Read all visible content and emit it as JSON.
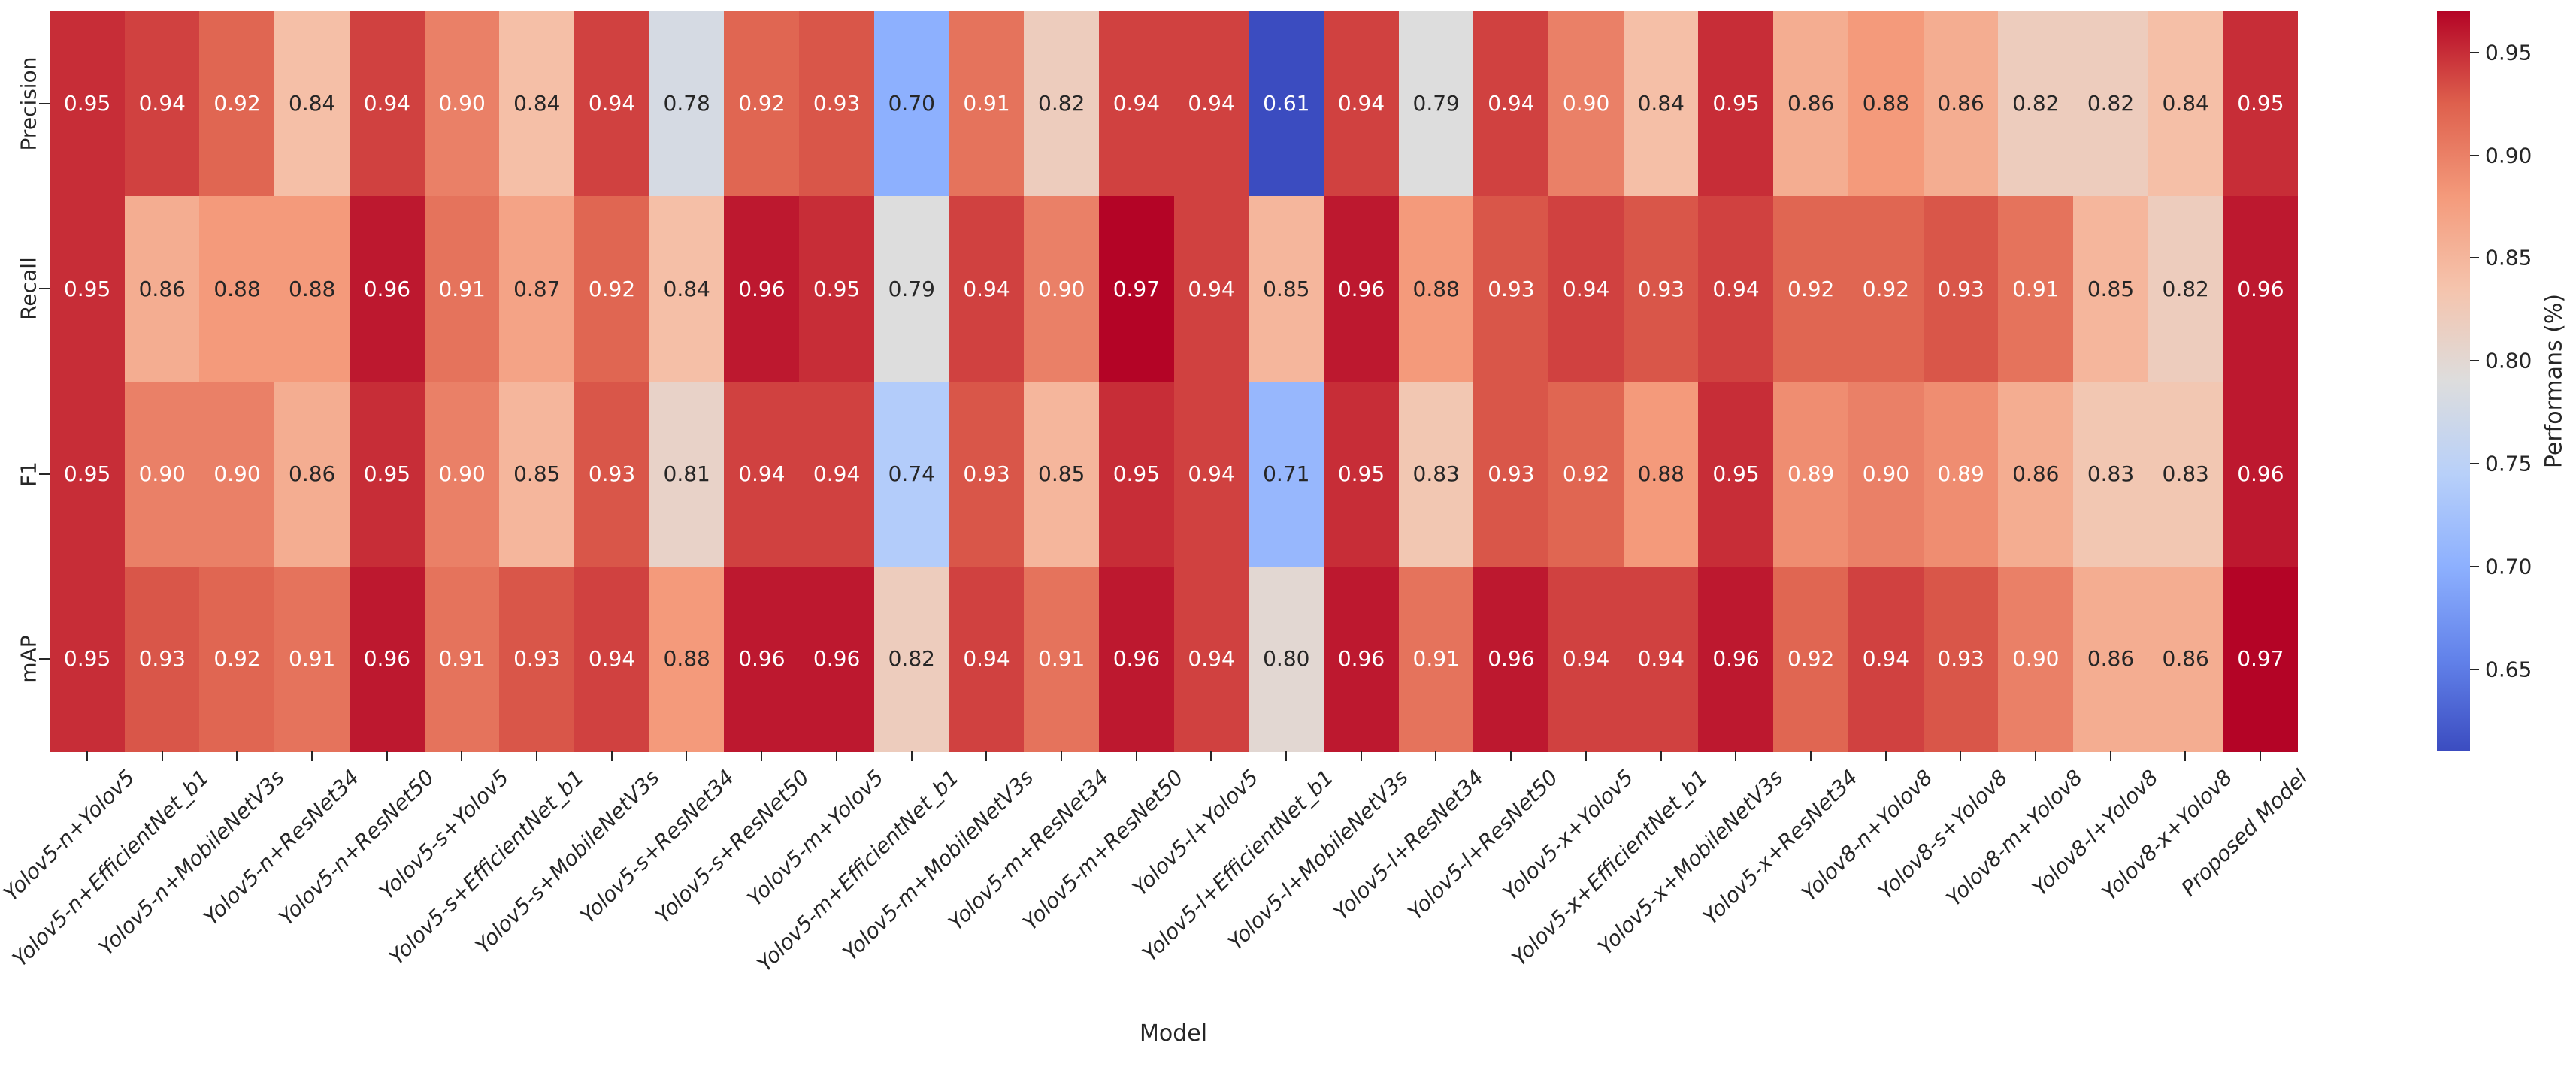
{
  "chart_data": {
    "type": "heatmap",
    "title": "",
    "xlabel": "Model",
    "ylabel": "",
    "colormap": "coolwarm",
    "grid": false,
    "rows": [
      "Precision",
      "Recall",
      "F1",
      "mAP"
    ],
    "columns": [
      "Yolov5-n+Yolov5",
      "Yolov5-n+EfficientNet_b1",
      "Yolov5-n+MobileNetV3s",
      "Yolov5-n+ResNet34",
      "Yolov5-n+ResNet50",
      "Yolov5-s+Yolov5",
      "Yolov5-s+EfficientNet_b1",
      "Yolov5-s+MobileNetV3s",
      "Yolov5-s+ResNet34",
      "Yolov5-s+ResNet50",
      "Yolov5-m+Yolov5",
      "Yolov5-m+EfficientNet_b1",
      "Yolov5-m+MobileNetV3s",
      "Yolov5-m+ResNet34",
      "Yolov5-m+ResNet50",
      "Yolov5-l+Yolov5",
      "Yolov5-l+EfficientNet_b1",
      "Yolov5-l+MobileNetV3s",
      "Yolov5-l+ResNet34",
      "Yolov5-l+ResNet50",
      "Yolov5-x+Yolov5",
      "Yolov5-x+EfficientNet_b1",
      "Yolov5-x+MobileNetV3s",
      "Yolov5-x+ResNet34",
      "Yolov8-n+Yolov8",
      "Yolov8-s+Yolov8",
      "Yolov8-m+Yolov8",
      "Yolov8-l+Yolov8",
      "Yolov8-x+Yolov8",
      "Proposed Model"
    ],
    "series": [
      {
        "name": "Precision",
        "values": [
          0.95,
          0.94,
          0.92,
          0.84,
          0.94,
          0.9,
          0.84,
          0.94,
          0.78,
          0.92,
          0.93,
          0.7,
          0.91,
          0.82,
          0.94,
          0.94,
          0.61,
          0.94,
          0.79,
          0.94,
          0.9,
          0.84,
          0.95,
          0.86,
          0.88,
          0.86,
          0.82,
          0.82,
          0.84,
          0.95
        ]
      },
      {
        "name": "Recall",
        "values": [
          0.95,
          0.86,
          0.88,
          0.88,
          0.96,
          0.91,
          0.87,
          0.92,
          0.84,
          0.96,
          0.95,
          0.79,
          0.94,
          0.9,
          0.97,
          0.94,
          0.85,
          0.96,
          0.88,
          0.93,
          0.94,
          0.93,
          0.94,
          0.92,
          0.92,
          0.93,
          0.91,
          0.85,
          0.82,
          0.96
        ]
      },
      {
        "name": "F1",
        "values": [
          0.95,
          0.9,
          0.9,
          0.86,
          0.95,
          0.9,
          0.85,
          0.93,
          0.81,
          0.94,
          0.94,
          0.74,
          0.93,
          0.85,
          0.95,
          0.94,
          0.71,
          0.95,
          0.83,
          0.93,
          0.92,
          0.88,
          0.95,
          0.89,
          0.9,
          0.89,
          0.86,
          0.83,
          0.83,
          0.96
        ]
      },
      {
        "name": "mAP",
        "values": [
          0.95,
          0.93,
          0.92,
          0.91,
          0.96,
          0.91,
          0.93,
          0.94,
          0.88,
          0.96,
          0.96,
          0.82,
          0.94,
          0.91,
          0.96,
          0.94,
          0.8,
          0.96,
          0.91,
          0.96,
          0.94,
          0.94,
          0.96,
          0.92,
          0.94,
          0.93,
          0.9,
          0.86,
          0.86,
          0.97
        ]
      }
    ],
    "value_format": "2dp",
    "vmin": 0.61,
    "vmax": 0.97,
    "colorbar": {
      "label": "Performans (%)",
      "position": "right",
      "tick_values": [
        0.95,
        0.9,
        0.85,
        0.8,
        0.75,
        0.7,
        0.65
      ]
    }
  }
}
